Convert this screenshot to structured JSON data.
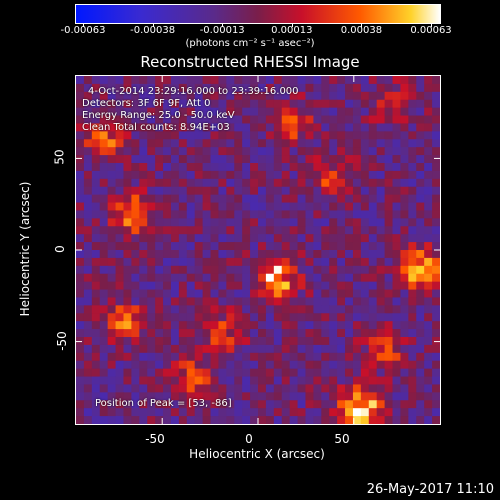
{
  "colorbar": {
    "ticks": [
      "-0.00063",
      "-0.00038",
      "-0.00013",
      "0.00013",
      "0.00038",
      "0.00063"
    ],
    "units_text": "(photons cm⁻² s⁻¹ asec⁻²)"
  },
  "annotations": {
    "time_range": "4-Oct-2014 23:29:16.000 to 23:39:16.000",
    "detectors": "Detectors: 3F 6F 9F, Att 0",
    "energy": "Energy Range: 25.0 - 50.0 keV",
    "clean_counts": "Clean     Total counts: 8.94E+03",
    "peak": "Position of Peak = [53, -86]"
  },
  "footer": {
    "timestamp": "26-May-2017 11:10"
  },
  "chart_data": {
    "type": "heatmap",
    "title": "Reconstructed RHESSI Image",
    "xlabel": "Heliocentric X (arcsec)",
    "ylabel": "Heliocentric Y (arcsec)",
    "xlim": [
      -95,
      95
    ],
    "ylim": [
      -95,
      95
    ],
    "xticks": [
      "-50",
      "0",
      "50"
    ],
    "yticks": [
      "50",
      "0",
      "-50"
    ],
    "colorbar_range": [
      -0.00063,
      0.00063
    ],
    "peak_position": [
      53,
      -86
    ],
    "hotspots": [
      {
        "x": 53,
        "y": -86,
        "intensity": 1.0
      },
      {
        "x": 85,
        "y": -10,
        "intensity": 0.9
      },
      {
        "x": 10,
        "y": -15,
        "intensity": 0.85
      },
      {
        "x": -65,
        "y": 20,
        "intensity": 0.7
      },
      {
        "x": -70,
        "y": -40,
        "intensity": 0.6
      },
      {
        "x": -35,
        "y": -70,
        "intensity": 0.55
      },
      {
        "x": -80,
        "y": 60,
        "intensity": 0.5
      },
      {
        "x": 40,
        "y": 40,
        "intensity": 0.45
      },
      {
        "x": 20,
        "y": 70,
        "intensity": 0.45
      },
      {
        "x": 70,
        "y": 80,
        "intensity": 0.4
      },
      {
        "x": -20,
        "y": -45,
        "intensity": 0.5
      },
      {
        "x": 65,
        "y": -55,
        "intensity": 0.5
      }
    ],
    "grid": false
  }
}
